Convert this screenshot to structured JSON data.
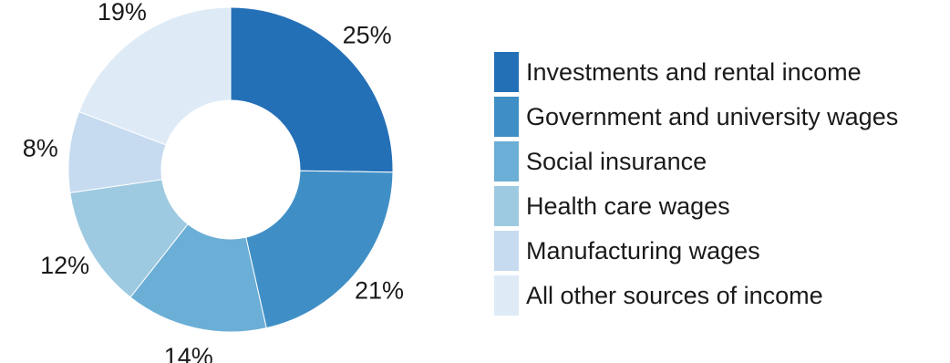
{
  "chart_data": {
    "type": "pie",
    "donut": true,
    "title": "",
    "legend_position": "right",
    "slices": [
      {
        "label": "Investments and rental income",
        "value": 25,
        "value_label": "25%",
        "color": "#2470b7"
      },
      {
        "label": "Government and university wages",
        "value": 21,
        "value_label": "21%",
        "color": "#3f8fc6"
      },
      {
        "label": "Social insurance",
        "value": 14,
        "value_label": "14%",
        "color": "#6baed6"
      },
      {
        "label": "Health care wages",
        "value": 12,
        "value_label": "12%",
        "color": "#9ecae1"
      },
      {
        "label": "Manufacturing wages",
        "value": 8,
        "value_label": "8%",
        "color": "#c6dbef"
      },
      {
        "label": "All other sources of income",
        "value": 19,
        "value_label": "19%",
        "color": "#deebf7"
      }
    ]
  }
}
